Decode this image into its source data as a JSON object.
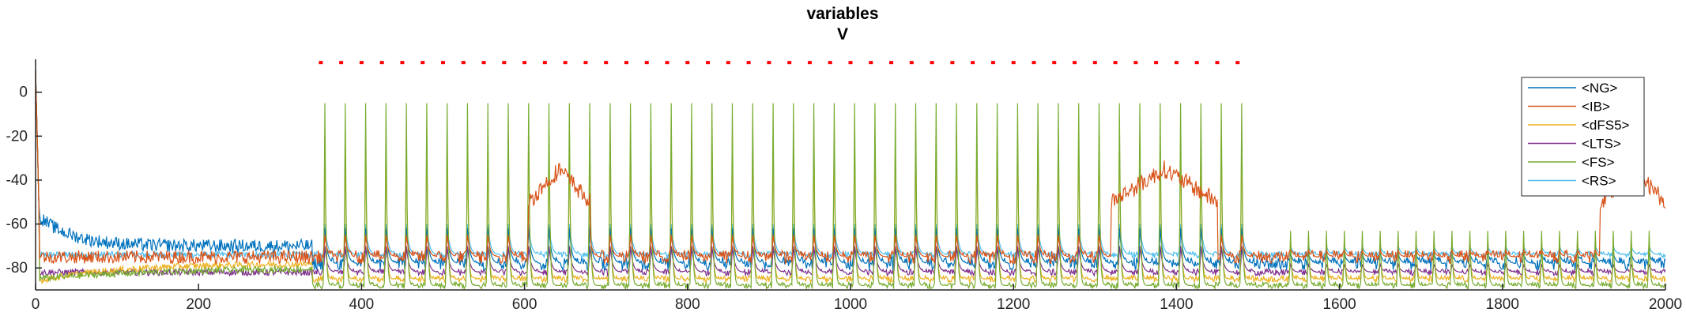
{
  "chart_data": {
    "type": "line",
    "title": "variables",
    "subtitle": "V",
    "xlabel": "",
    "ylabel": "",
    "xlim": [
      0,
      2000
    ],
    "ylim": [
      -90,
      15
    ],
    "xticks": [
      0,
      200,
      400,
      600,
      800,
      1000,
      1200,
      1400,
      1600,
      1800,
      2000
    ],
    "yticks": [
      0,
      -20,
      -40,
      -60,
      -80
    ],
    "grid": false,
    "legend_position": "top-right",
    "stimulus_marker": {
      "x_start": 350,
      "x_end": 1480,
      "y": 13.5,
      "color": "#ff0000"
    },
    "oscillation": {
      "period_ms": 25,
      "first_spike_ms": 355,
      "last_spike_ms": 1480
    },
    "series": [
      {
        "name": "<NG>",
        "color": "#0072BD",
        "baseline": -78,
        "spike_peak": -62
      },
      {
        "name": "<IB>",
        "color": "#D95319",
        "baseline": -75,
        "spike_peak": -65,
        "burst_ranges": [
          [
            605,
            680
          ],
          [
            1320,
            1450
          ],
          [
            1920,
            2000
          ]
        ]
      },
      {
        "name": "<dFS5>",
        "color": "#EDB120",
        "baseline": -85,
        "spike_peak": -20
      },
      {
        "name": "<LTS>",
        "color": "#7E2F8E",
        "baseline": -82,
        "spike_peak": -70
      },
      {
        "name": "<FS>",
        "color": "#77AC30",
        "baseline": -88,
        "spike_peak": -5
      },
      {
        "name": "<RS>",
        "color": "#4DBEEE",
        "baseline": -74,
        "spike_peak": -60
      }
    ],
    "legend": [
      "<NG>",
      "<IB>",
      "<dFS5>",
      "<LTS>",
      "<FS>",
      "<RS>"
    ]
  }
}
